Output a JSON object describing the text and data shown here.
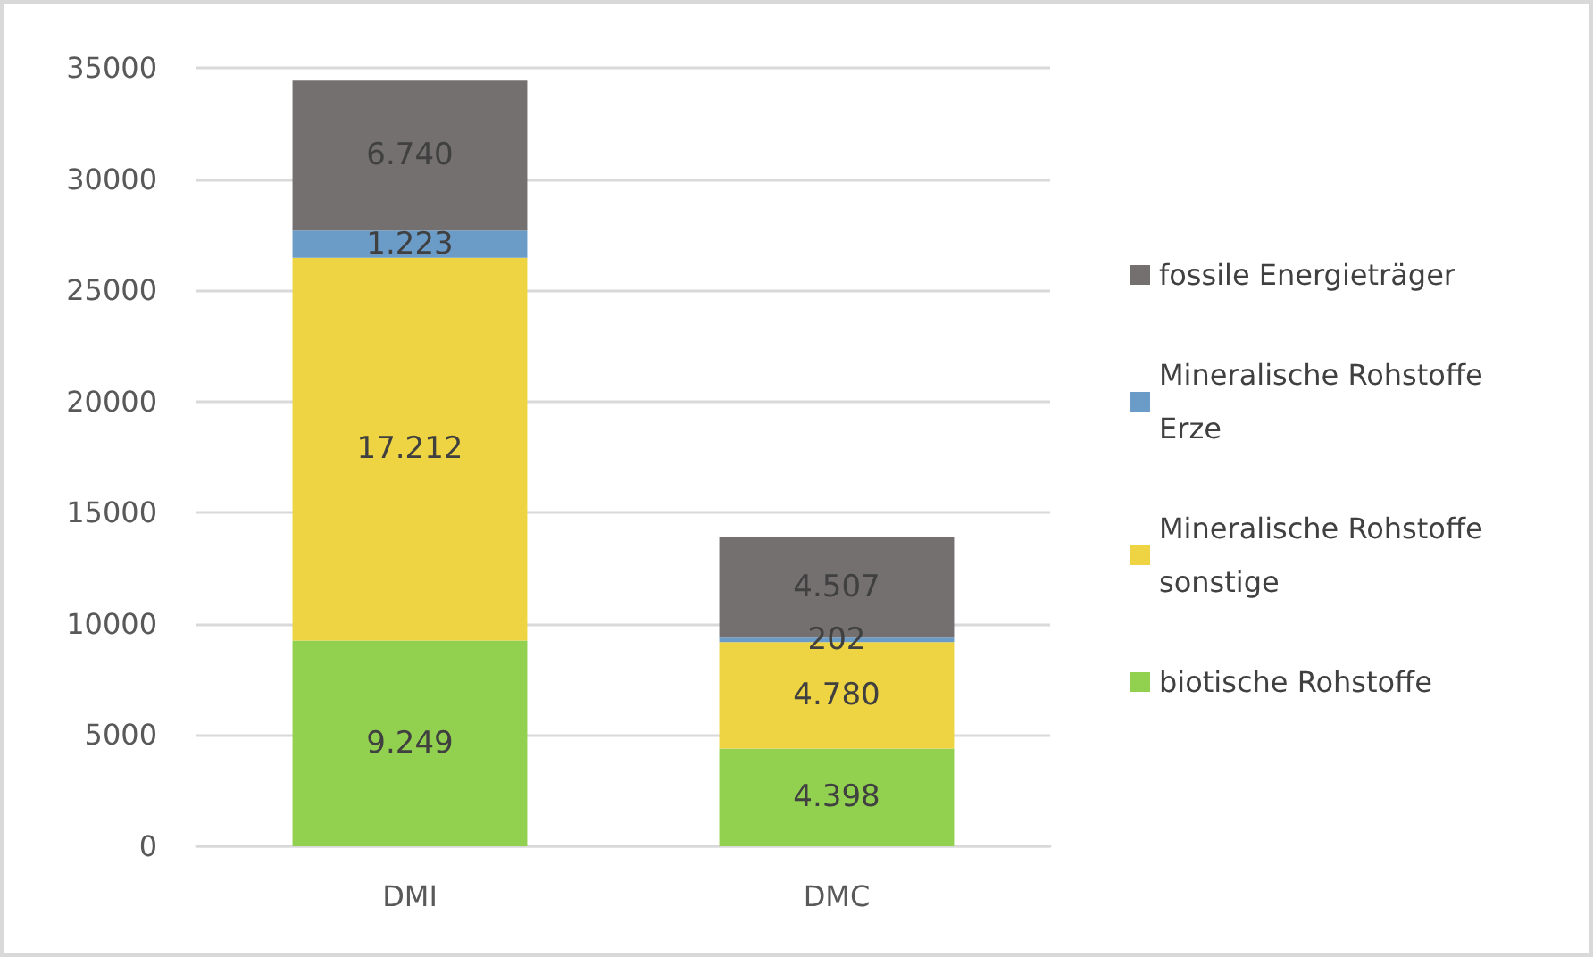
{
  "chart_data": {
    "type": "bar",
    "stacked": true,
    "categories": [
      "DMI",
      "DMC"
    ],
    "series": [
      {
        "name": "biotische Rohstoffe",
        "color": "#92d050",
        "values": [
          9249,
          4398
        ],
        "value_labels": [
          "9.249",
          "4.398"
        ]
      },
      {
        "name": "Mineralische Rohstoffe sonstige",
        "color": "#eed442",
        "values": [
          17212,
          4780
        ],
        "value_labels": [
          "17.212",
          "4.780"
        ]
      },
      {
        "name": "Mineralische Rohstoffe Erze",
        "color": "#6b9bc7",
        "values": [
          1223,
          202
        ],
        "value_labels": [
          "1.223",
          "202"
        ]
      },
      {
        "name": "fossile Energieträger",
        "color": "#747070",
        "values": [
          6740,
          4507
        ],
        "value_labels": [
          "6.740",
          "4.507"
        ]
      }
    ],
    "ylim": [
      0,
      35000
    ],
    "yticks": [
      0,
      5000,
      10000,
      15000,
      20000,
      25000,
      30000,
      35000
    ],
    "grid": "y",
    "legend": "right"
  }
}
